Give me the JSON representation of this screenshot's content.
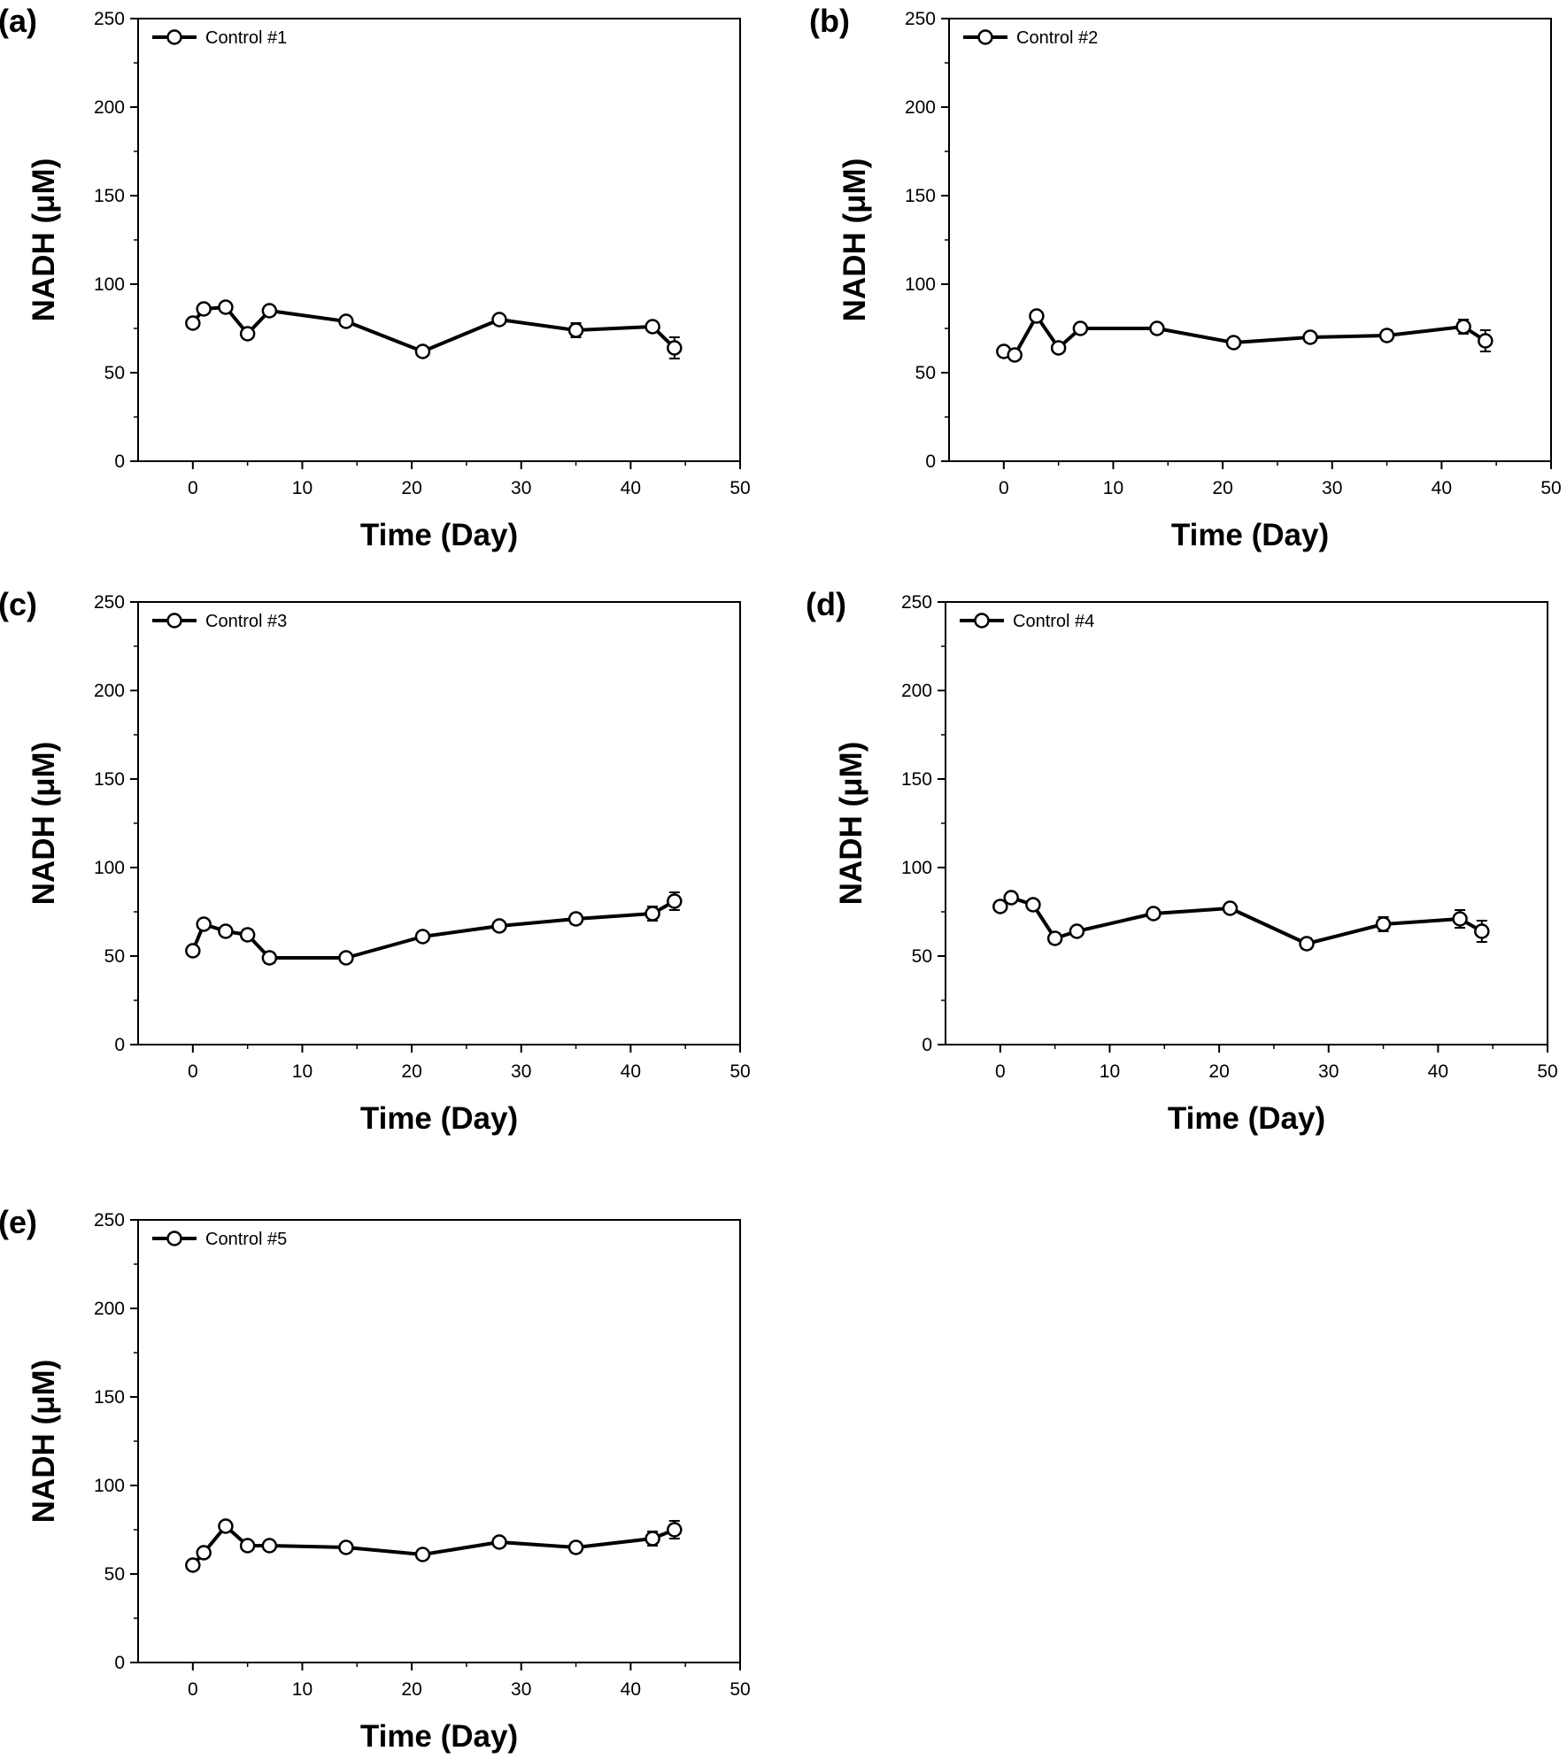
{
  "chart_data": [
    {
      "type": "line",
      "panel_label": "(a)",
      "xlabel": "Time (Day)",
      "ylabel": "NADH (μM)",
      "xlim": [
        -5,
        50
      ],
      "ylim": [
        0,
        250
      ],
      "xticks": [
        0,
        10,
        20,
        30,
        40,
        50
      ],
      "yticks": [
        0,
        50,
        100,
        150,
        200,
        250
      ],
      "legend_position": "top-left",
      "series": [
        {
          "name": "Control #1",
          "x": [
            0,
            1,
            3,
            5,
            7,
            14,
            21,
            28,
            35,
            42,
            44
          ],
          "y": [
            78,
            86,
            87,
            72,
            85,
            79,
            62,
            80,
            74,
            76,
            64
          ],
          "err": [
            2,
            2,
            2,
            2,
            2,
            2,
            2,
            2,
            4,
            2,
            6
          ]
        }
      ]
    },
    {
      "type": "line",
      "panel_label": "(b)",
      "xlabel": "Time (Day)",
      "ylabel": "NADH (μM)",
      "xlim": [
        -5,
        50
      ],
      "ylim": [
        0,
        250
      ],
      "xticks": [
        0,
        10,
        20,
        30,
        40,
        50
      ],
      "yticks": [
        0,
        50,
        100,
        150,
        200,
        250
      ],
      "legend_position": "top-left",
      "series": [
        {
          "name": "Control #2",
          "x": [
            0,
            1,
            3,
            5,
            7,
            14,
            21,
            28,
            35,
            42,
            44
          ],
          "y": [
            62,
            60,
            82,
            64,
            75,
            75,
            67,
            70,
            71,
            76,
            68
          ],
          "err": [
            2,
            2,
            2,
            2,
            2,
            2,
            2,
            2,
            3,
            4,
            6
          ]
        }
      ]
    },
    {
      "type": "line",
      "panel_label": "(c)",
      "xlabel": "Time (Day)",
      "ylabel": "NADH (μM)",
      "xlim": [
        -5,
        50
      ],
      "ylim": [
        0,
        250
      ],
      "xticks": [
        0,
        10,
        20,
        30,
        40,
        50
      ],
      "yticks": [
        0,
        50,
        100,
        150,
        200,
        250
      ],
      "legend_position": "top-left",
      "series": [
        {
          "name": "Control #3",
          "x": [
            0,
            1,
            3,
            5,
            7,
            14,
            21,
            28,
            35,
            42,
            44
          ],
          "y": [
            53,
            68,
            64,
            62,
            49,
            49,
            61,
            67,
            71,
            74,
            81
          ],
          "err": [
            2,
            2,
            2,
            3,
            3,
            2,
            2,
            2,
            3,
            4,
            5
          ]
        }
      ]
    },
    {
      "type": "line",
      "panel_label": "(d)",
      "xlabel": "Time (Day)",
      "ylabel": "NADH (μM)",
      "xlim": [
        -5,
        50
      ],
      "ylim": [
        0,
        250
      ],
      "xticks": [
        0,
        10,
        20,
        30,
        40,
        50
      ],
      "yticks": [
        0,
        50,
        100,
        150,
        200,
        250
      ],
      "legend_position": "top-left",
      "series": [
        {
          "name": "Control #4",
          "x": [
            0,
            1,
            3,
            5,
            7,
            14,
            21,
            28,
            35,
            42,
            44
          ],
          "y": [
            78,
            83,
            79,
            60,
            64,
            74,
            77,
            57,
            68,
            71,
            64
          ],
          "err": [
            2,
            2,
            2,
            3,
            2,
            2,
            2,
            3,
            4,
            5,
            6
          ]
        }
      ]
    },
    {
      "type": "line",
      "panel_label": "(e)",
      "xlabel": "Time (Day)",
      "ylabel": "NADH (μM)",
      "xlim": [
        -5,
        50
      ],
      "ylim": [
        0,
        250
      ],
      "xticks": [
        0,
        10,
        20,
        30,
        40,
        50
      ],
      "yticks": [
        0,
        50,
        100,
        150,
        200,
        250
      ],
      "legend_position": "top-left",
      "series": [
        {
          "name": "Control #5",
          "x": [
            0,
            1,
            3,
            5,
            7,
            14,
            21,
            28,
            35,
            42,
            44
          ],
          "y": [
            55,
            62,
            77,
            66,
            66,
            65,
            61,
            68,
            65,
            70,
            75
          ],
          "err": [
            2,
            2,
            2,
            2,
            2,
            2,
            2,
            2,
            3,
            4,
            5
          ]
        }
      ]
    }
  ]
}
